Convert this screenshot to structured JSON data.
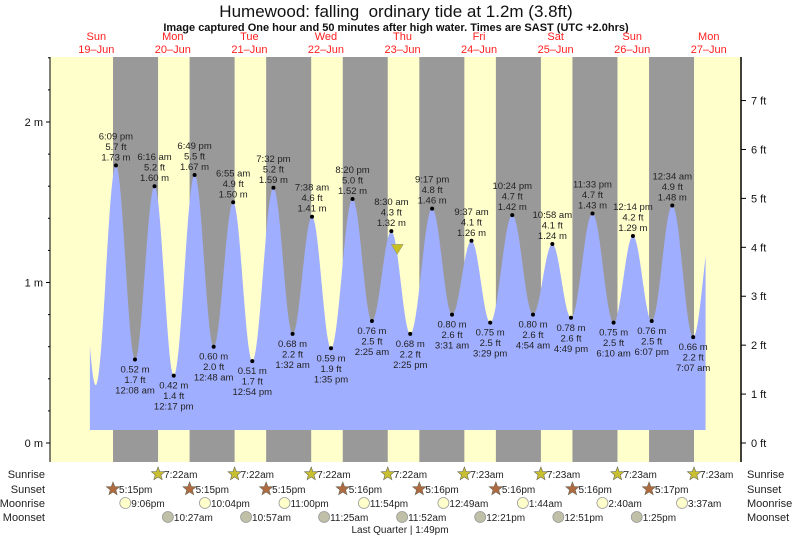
{
  "chart_data": {
    "type": "area",
    "title": "Humewood: falling  ordinary tide at 1.2m (3.8ft)",
    "subtitle": "Image captured One hour and 50 minutes after high water. Times are SAST (UTC +2.0hrs)",
    "days": [
      {
        "dow": "Sun",
        "date": "19–Jun"
      },
      {
        "dow": "Mon",
        "date": "20–Jun"
      },
      {
        "dow": "Tue",
        "date": "21–Jun"
      },
      {
        "dow": "Wed",
        "date": "22–Jun"
      },
      {
        "dow": "Thu",
        "date": "23–Jun"
      },
      {
        "dow": "Fri",
        "date": "24–Jun"
      },
      {
        "dow": "Sat",
        "date": "25–Jun"
      },
      {
        "dow": "Sun",
        "date": "26–Jun"
      },
      {
        "dow": "Mon",
        "date": "27–Jun"
      }
    ],
    "y_left": {
      "unit": "m",
      "ticks": [
        "0 m",
        "1 m",
        "2 m"
      ],
      "values": [
        0,
        1,
        2
      ]
    },
    "y_right": {
      "unit": "ft",
      "ticks": [
        "0 ft",
        "1 ft",
        "2 ft",
        "3 ft",
        "4 ft",
        "5 ft",
        "6 ft",
        "7 ft"
      ],
      "values": [
        0,
        1,
        2,
        3,
        4,
        5,
        6,
        7
      ]
    },
    "extremes": [
      {
        "day": 0,
        "type": "high",
        "time": "6:09 pm",
        "ft": "5.7 ft",
        "m": "1.73 m",
        "value": 1.73
      },
      {
        "day": 1,
        "type": "low",
        "time": "12:08 am",
        "ft": "1.7 ft",
        "m": "0.52 m",
        "value": 0.52
      },
      {
        "day": 1,
        "type": "high",
        "time": "6:16 am",
        "ft": "5.2 ft",
        "m": "1.60 m",
        "value": 1.6
      },
      {
        "day": 1,
        "type": "low",
        "time": "12:17 pm",
        "ft": "1.4 ft",
        "m": "0.42 m",
        "value": 0.42
      },
      {
        "day": 1,
        "type": "high",
        "time": "6:49 pm",
        "ft": "5.5 ft",
        "m": "1.67 m",
        "value": 1.67
      },
      {
        "day": 2,
        "type": "low",
        "time": "12:48 am",
        "ft": "2.0 ft",
        "m": "0.60 m",
        "value": 0.6
      },
      {
        "day": 2,
        "type": "high",
        "time": "6:55 am",
        "ft": "4.9 ft",
        "m": "1.50 m",
        "value": 1.5
      },
      {
        "day": 2,
        "type": "low",
        "time": "12:54 pm",
        "ft": "1.7 ft",
        "m": "0.51 m",
        "value": 0.51
      },
      {
        "day": 2,
        "type": "high",
        "time": "7:32 pm",
        "ft": "5.2 ft",
        "m": "1.59 m",
        "value": 1.59
      },
      {
        "day": 3,
        "type": "low",
        "time": "1:32 am",
        "ft": "2.2 ft",
        "m": "0.68 m",
        "value": 0.68
      },
      {
        "day": 3,
        "type": "high",
        "time": "7:38 am",
        "ft": "4.6 ft",
        "m": "1.41 m",
        "value": 1.41
      },
      {
        "day": 3,
        "type": "low",
        "time": "1:35 pm",
        "ft": "1.9 ft",
        "m": "0.59 m",
        "value": 0.59
      },
      {
        "day": 3,
        "type": "high",
        "time": "8:20 pm",
        "ft": "5.0 ft",
        "m": "1.52 m",
        "value": 1.52
      },
      {
        "day": 4,
        "type": "low",
        "time": "2:25 am",
        "ft": "2.5 ft",
        "m": "0.76 m",
        "value": 0.76
      },
      {
        "day": 4,
        "type": "high",
        "time": "8:30 am",
        "ft": "4.3 ft",
        "m": "1.32 m",
        "value": 1.32
      },
      {
        "day": 4,
        "type": "low",
        "time": "2:25 pm",
        "ft": "2.2 ft",
        "m": "0.68 m",
        "value": 0.68
      },
      {
        "day": 4,
        "type": "high",
        "time": "9:17 pm",
        "ft": "4.8 ft",
        "m": "1.46 m",
        "value": 1.46
      },
      {
        "day": 5,
        "type": "low",
        "time": "3:31 am",
        "ft": "2.6 ft",
        "m": "0.80 m",
        "value": 0.8
      },
      {
        "day": 5,
        "type": "high",
        "time": "9:37 am",
        "ft": "4.1 ft",
        "m": "1.26 m",
        "value": 1.26
      },
      {
        "day": 5,
        "type": "low",
        "time": "3:29 pm",
        "ft": "2.5 ft",
        "m": "0.75 m",
        "value": 0.75
      },
      {
        "day": 5,
        "type": "high",
        "time": "10:24 pm",
        "ft": "4.7 ft",
        "m": "1.42 m",
        "value": 1.42
      },
      {
        "day": 6,
        "type": "low",
        "time": "4:54 am",
        "ft": "2.6 ft",
        "m": "0.80 m",
        "value": 0.8
      },
      {
        "day": 6,
        "type": "high",
        "time": "10:58 am",
        "ft": "4.1 ft",
        "m": "1.24 m",
        "value": 1.24
      },
      {
        "day": 6,
        "type": "low",
        "time": "4:49 pm",
        "ft": "2.6 ft",
        "m": "0.78 m",
        "value": 0.78
      },
      {
        "day": 6,
        "type": "high",
        "time": "11:33 pm",
        "ft": "4.7 ft",
        "m": "1.43 m",
        "value": 1.43
      },
      {
        "day": 7,
        "type": "low",
        "time": "6:10 am",
        "ft": "2.5 ft",
        "m": "0.75 m",
        "value": 0.75
      },
      {
        "day": 7,
        "type": "high",
        "time": "12:14 pm",
        "ft": "4.2 ft",
        "m": "1.29 m",
        "value": 1.29
      },
      {
        "day": 7,
        "type": "low",
        "time": "6:07 pm",
        "ft": "2.5 ft",
        "m": "0.76 m",
        "value": 0.76
      },
      {
        "day": 8,
        "type": "high",
        "time": "12:34 am",
        "ft": "4.9 ft",
        "m": "1.48 m",
        "value": 1.48
      },
      {
        "day": 8,
        "type": "low",
        "time": "7:07 am",
        "ft": "2.2 ft",
        "m": "0.66 m",
        "value": 0.66
      }
    ],
    "current": {
      "day": 4,
      "time": "10:20 am",
      "value": 1.2
    },
    "rows": {
      "sunrise_label": "Sunrise",
      "sunset_label": "Sunset",
      "moonrise_label": "Moonrise",
      "moonset_label": "Moonset",
      "sunrise": [
        {
          "day": 1,
          "time": "7:22am"
        },
        {
          "day": 2,
          "time": "7:22am"
        },
        {
          "day": 3,
          "time": "7:22am"
        },
        {
          "day": 4,
          "time": "7:22am"
        },
        {
          "day": 5,
          "time": "7:23am"
        },
        {
          "day": 6,
          "time": "7:23am"
        },
        {
          "day": 7,
          "time": "7:23am"
        },
        {
          "day": 8,
          "time": "7:23am"
        }
      ],
      "sunset": [
        {
          "day": 0,
          "time": "5:15pm"
        },
        {
          "day": 1,
          "time": "5:15pm"
        },
        {
          "day": 2,
          "time": "5:15pm"
        },
        {
          "day": 3,
          "time": "5:16pm"
        },
        {
          "day": 4,
          "time": "5:16pm"
        },
        {
          "day": 5,
          "time": "5:16pm"
        },
        {
          "day": 6,
          "time": "5:16pm"
        },
        {
          "day": 7,
          "time": "5:17pm"
        }
      ],
      "moonrise": [
        {
          "day": 0,
          "time": "9:06pm"
        },
        {
          "day": 1,
          "time": "10:04pm"
        },
        {
          "day": 2,
          "time": "11:00pm"
        },
        {
          "day": 3,
          "time": "11:54pm"
        },
        {
          "day": 5,
          "time": "12:49am"
        },
        {
          "day": 6,
          "time": "1:44am"
        },
        {
          "day": 7,
          "time": "2:40am"
        },
        {
          "day": 8,
          "time": "3:37am"
        }
      ],
      "moonset": [
        {
          "day": 1,
          "time": "10:27am"
        },
        {
          "day": 2,
          "time": "10:57am"
        },
        {
          "day": 3,
          "time": "11:25am"
        },
        {
          "day": 4,
          "time": "11:52am"
        },
        {
          "day": 5,
          "time": "12:21pm"
        },
        {
          "day": 6,
          "time": "12:51pm"
        },
        {
          "day": 7,
          "time": "1:25pm"
        }
      ]
    },
    "moon_phase": "Last Quarter | 1:49pm",
    "colors": {
      "water": "#a0aeff",
      "day": "#ffffcc",
      "night": "#999999",
      "day_label": "#ff2020",
      "sun": "#c8c030",
      "sunset": "#b06a40",
      "moonrise": "#ffffcc",
      "moonset": "#c0c0a8",
      "marker": "#c8c020"
    }
  }
}
